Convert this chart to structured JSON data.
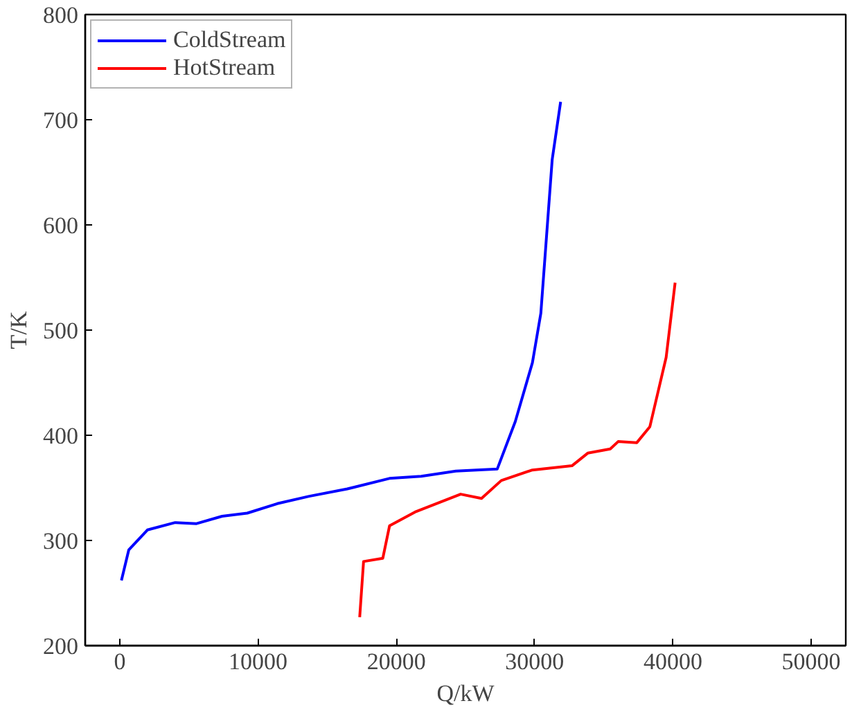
{
  "chart_data": {
    "type": "line",
    "xlabel": "Q/kW",
    "ylabel": "T/K",
    "xlim": [
      -2500,
      52500
    ],
    "ylim": [
      200,
      800
    ],
    "xticks": [
      0,
      10000,
      20000,
      30000,
      40000,
      50000
    ],
    "yticks": [
      200,
      300,
      400,
      500,
      600,
      700,
      800
    ],
    "grid": false,
    "legend": "top left",
    "marker": "none",
    "line_style": "solid",
    "series": [
      {
        "name": "ColdStream",
        "color": "#0000ff",
        "x": [
          120,
          650,
          2000,
          4000,
          5550,
          7400,
          9220,
          11390,
          13700,
          16450,
          19500,
          21800,
          24300,
          27300,
          28600,
          29840,
          30450,
          31270,
          31880
        ],
        "values": [
          262,
          291,
          310,
          317,
          316,
          323,
          326,
          335,
          342,
          349,
          359,
          361,
          366,
          368,
          413,
          469,
          516,
          662,
          717
        ]
      },
      {
        "name": "HotStream",
        "color": "#ff0000",
        "x": [
          17350,
          17630,
          19020,
          19510,
          21350,
          24650,
          26160,
          27590,
          29840,
          32700,
          33840,
          35470,
          36040,
          37390,
          38330,
          39510,
          40160
        ],
        "values": [
          227,
          280,
          283,
          314,
          327,
          344,
          340,
          357,
          367,
          371,
          383,
          387,
          394,
          393,
          408,
          474,
          545
        ]
      }
    ]
  }
}
